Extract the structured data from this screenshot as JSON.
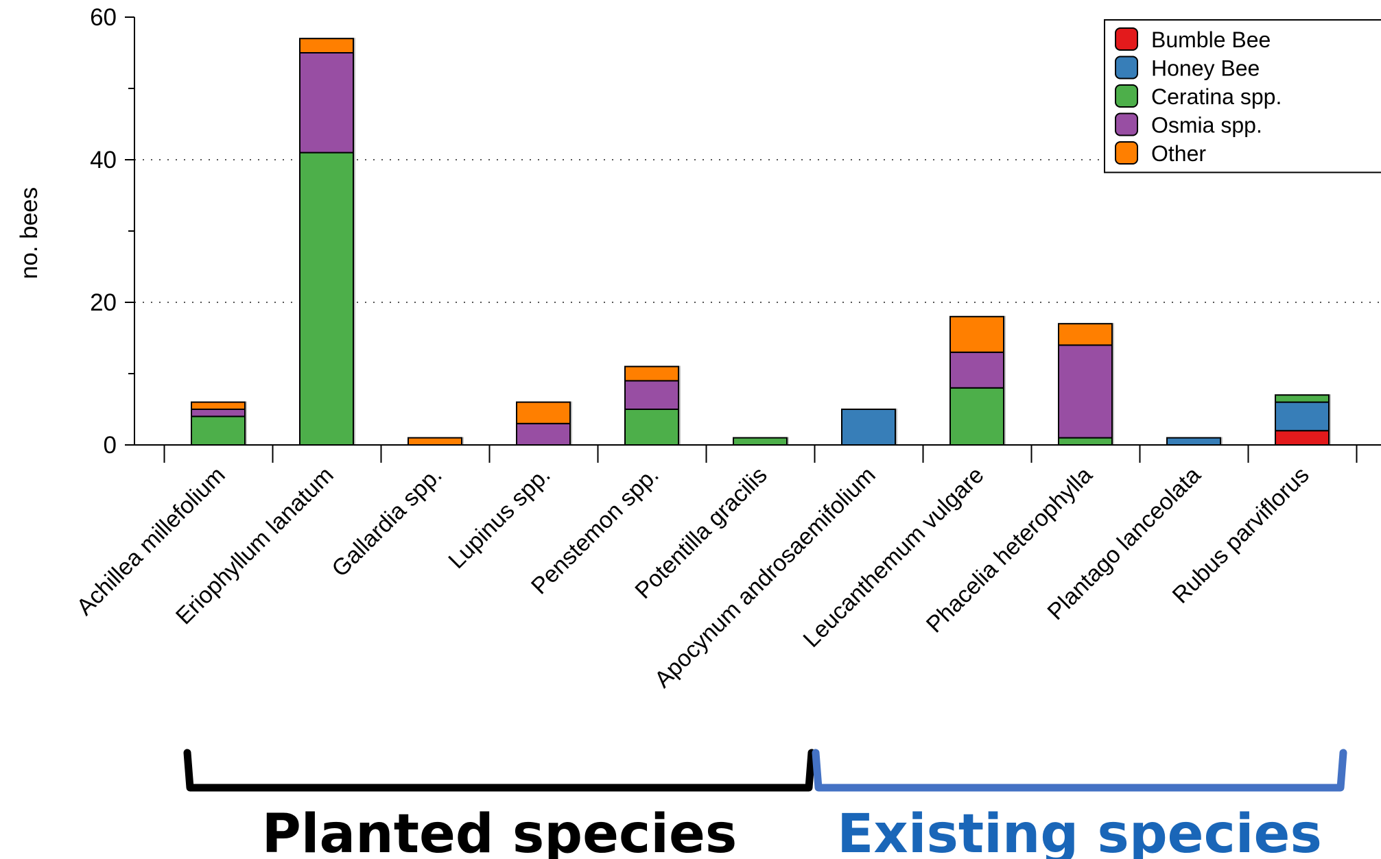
{
  "chart_data": {
    "type": "bar",
    "stacked": true,
    "ylabel": "no. bees",
    "ylim": [
      0,
      60
    ],
    "yticks": [
      0,
      20,
      40,
      60
    ],
    "grid": "dotted horizontal lines at 20 and 40",
    "legend_position": "top-right",
    "categories": [
      "Achillea millefolium",
      "Eriophyllum lanatum",
      "Gallardia spp.",
      "Lupinus spp.",
      "Penstemon spp.",
      "Potentilla gracilis",
      "Apocynum androsaemifolium",
      "Leucanthemum vulgare",
      "Phacelia heterophylla",
      "Plantago lanceolata",
      "Rubus parviflorus"
    ],
    "series": [
      {
        "name": "Bumble Bee",
        "color": "#e31a1c",
        "values": [
          0,
          0,
          0,
          0,
          0,
          0,
          0,
          0,
          0,
          0,
          2
        ]
      },
      {
        "name": "Honey Bee",
        "color": "#377eb8",
        "values": [
          0,
          0,
          0,
          0,
          0,
          0,
          5,
          0,
          0,
          1,
          4
        ]
      },
      {
        "name": "Ceratina spp.",
        "color": "#4daf4a",
        "values": [
          4,
          41,
          0,
          0,
          5,
          1,
          0,
          8,
          1,
          0,
          1
        ]
      },
      {
        "name": "Osmia spp.",
        "color": "#984ea3",
        "values": [
          1,
          14,
          0,
          3,
          4,
          0,
          0,
          5,
          13,
          0,
          0
        ]
      },
      {
        "name": "Other",
        "color": "#ff7f00",
        "values": [
          1,
          2,
          1,
          3,
          2,
          0,
          0,
          5,
          3,
          0,
          0
        ]
      }
    ],
    "groups": [
      {
        "label": "Planted species",
        "color": "#000000",
        "from_index": 0,
        "to_index": 5
      },
      {
        "label": "Existing species",
        "color": "#4472c4",
        "text_color": "#1a66b8",
        "from_index": 6,
        "to_index": 10
      }
    ]
  }
}
